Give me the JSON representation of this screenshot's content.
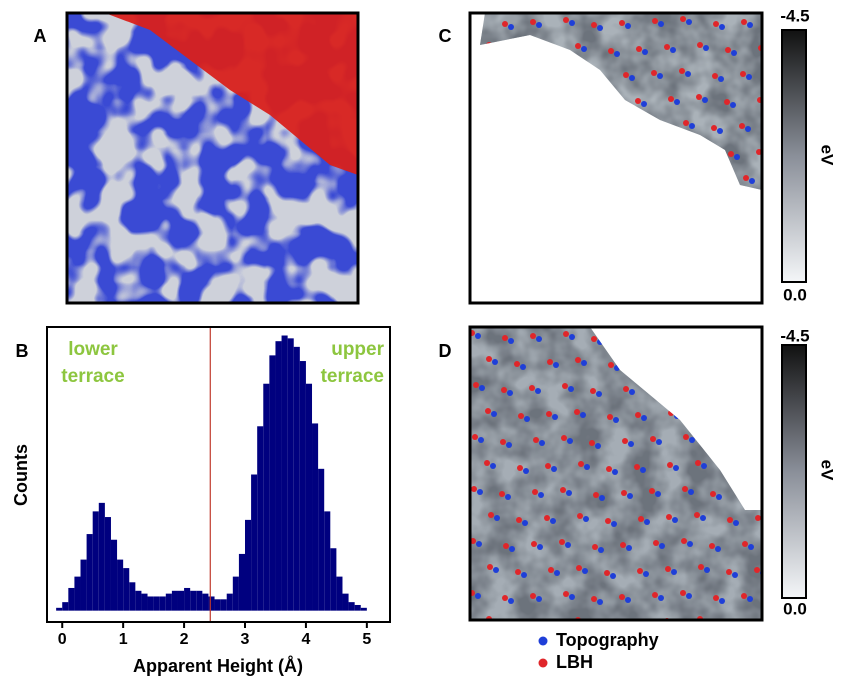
{
  "panel_labels": [
    "A",
    "B",
    "C",
    "D"
  ],
  "chart_data": {
    "type": "histogram",
    "xlabel": "Apparent Height (Å)",
    "ylabel": "Counts",
    "color": "#00007f",
    "bins": [
      -0.2,
      -0.1,
      0,
      0.1,
      0.2,
      0.3,
      0.4,
      0.5,
      0.6,
      0.7,
      0.8,
      0.9,
      1,
      1.1,
      1.2,
      1.3,
      1.4,
      1.5,
      1.6,
      1.7,
      1.8,
      1.9,
      2,
      2.1,
      2.2,
      2.3,
      2.4,
      2.5,
      2.6,
      2.7,
      2.8,
      2.9,
      3,
      3.1,
      3.2,
      3.3,
      3.4,
      3.5,
      3.6,
      3.7,
      3.8,
      3.9,
      4,
      4.1,
      4.2,
      4.3,
      4.4,
      4.5,
      4.6,
      4.7,
      4.8,
      4.9,
      5,
      5.1,
      5.2,
      5.3
    ],
    "values": [
      0,
      1,
      3,
      8,
      12,
      18,
      27,
      35,
      38,
      33,
      25,
      18,
      15,
      10,
      7,
      6,
      5,
      5,
      5,
      6,
      7,
      7,
      8,
      7,
      7,
      6,
      5,
      4,
      4,
      6,
      12,
      20,
      32,
      48,
      65,
      80,
      90,
      95,
      97,
      96,
      93,
      88,
      80,
      66,
      50,
      35,
      22,
      12,
      6,
      3,
      2,
      1,
      0,
      0,
      0
    ],
    "xlim": [
      -0.25,
      5.38
    ],
    "xticks": [
      0,
      1,
      2,
      3,
      4,
      5
    ],
    "ylim": [
      -4,
      100
    ],
    "marker_x": 2.43,
    "marker_color": "#c0392b",
    "annotation_color": "#8dc63f",
    "annotations": [
      {
        "lines": [
          "lower",
          "terrace"
        ]
      },
      {
        "lines": [
          "upper",
          "terrace"
        ]
      }
    ]
  },
  "colorbars": [
    {
      "top": "-4.5",
      "bottom": "0.0",
      "unit": "eV"
    },
    {
      "top": "-4.5",
      "bottom": "0.0",
      "unit": "eV"
    }
  ],
  "legend": [
    {
      "name": "Topography",
      "color": "#1f3fd8"
    },
    {
      "name": "LBH",
      "color": "#e0262a"
    }
  ]
}
